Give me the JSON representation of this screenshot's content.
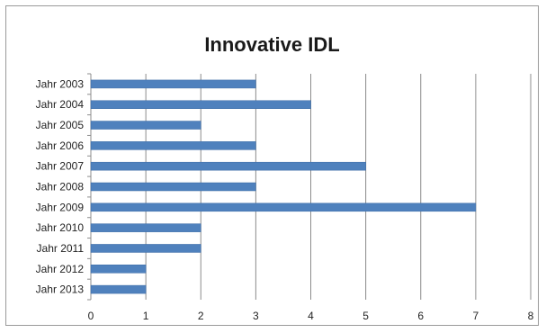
{
  "chart_data": {
    "type": "bar",
    "orientation": "horizontal",
    "title": "Innovative IDL",
    "categories": [
      "Jahr 2003",
      "Jahr 2004",
      "Jahr 2005",
      "Jahr 2006",
      "Jahr 2007",
      "Jahr 2008",
      "Jahr 2009",
      "Jahr 2010",
      "Jahr 2011",
      "Jahr 2012",
      "Jahr 2013"
    ],
    "values": [
      3,
      4,
      2,
      3,
      5,
      3,
      7,
      2,
      2,
      1,
      1
    ],
    "xlabel": "",
    "ylabel": "",
    "xlim": [
      0,
      8
    ],
    "xticks": [
      "0",
      "1",
      "2",
      "3",
      "4",
      "5",
      "6",
      "7",
      "8"
    ],
    "grid": "vertical",
    "legend": "none",
    "bar_color": "#4f81bd"
  }
}
